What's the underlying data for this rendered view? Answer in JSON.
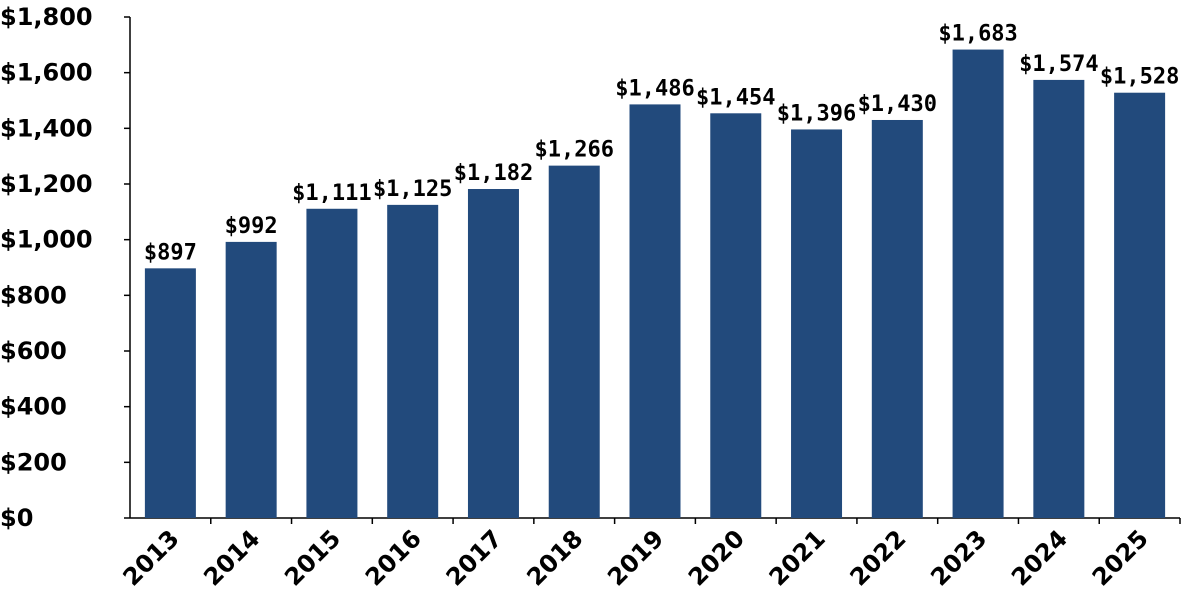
{
  "chart_data": {
    "type": "bar",
    "categories": [
      "2013",
      "2014",
      "2015",
      "2016",
      "2017",
      "2018",
      "2019",
      "2020",
      "2021",
      "2022",
      "2023",
      "2024",
      "2025"
    ],
    "values": [
      897,
      992,
      1111,
      1125,
      1182,
      1266,
      1486,
      1454,
      1396,
      1430,
      1683,
      1574,
      1528
    ],
    "data_labels": [
      "$897",
      "$992",
      "$1,111",
      "$1,125",
      "$1,182",
      "$1,266",
      "$1,486",
      "$1,454",
      "$1,396",
      "$1,430",
      "$1,683",
      "$1,574",
      "$1,528"
    ],
    "y_ticks": [
      0,
      200,
      400,
      600,
      800,
      1000,
      1200,
      1400,
      1600,
      1800
    ],
    "y_tick_labels": [
      "$0",
      "$200",
      "$400",
      "$600",
      "$800",
      "$1,000",
      "$1,200",
      "$1,400",
      "$1,600",
      "$1,800"
    ],
    "ylim": [
      0,
      1800
    ],
    "title": "",
    "xlabel": "",
    "ylabel": "",
    "grid": false,
    "legend": "none",
    "bar_color": "#224a7c"
  }
}
